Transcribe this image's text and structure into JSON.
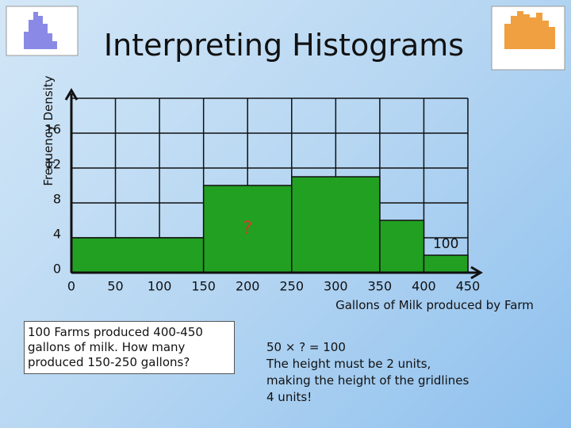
{
  "chart_data": {
    "type": "histogram",
    "title": "Interpreting Histograms",
    "x_label": "Gallons of Milk produced by Farm",
    "y_label": "Frequency Density",
    "bins": [
      0,
      150,
      250,
      350,
      400,
      450
    ],
    "values": [
      4,
      10,
      11,
      6,
      2
    ],
    "color": "#22a022",
    "xlim": [
      0,
      450
    ],
    "xticks": [
      0,
      50,
      100,
      150,
      200,
      250,
      300,
      350,
      400,
      450
    ],
    "ylim": [
      0,
      20
    ],
    "yticks": [
      0,
      4,
      8,
      12,
      16
    ],
    "grid": true,
    "annotations": [
      {
        "text": "?",
        "bar": 1
      },
      {
        "text": "100",
        "bar": 4
      }
    ]
  },
  "question": "100 Farms produced 400-450 gallons of milk. How many produced 150-250 gallons?",
  "working": [
    "50 × ? = 100",
    "The height must be 2 units, making the height of the gridlines 4 units!"
  ]
}
